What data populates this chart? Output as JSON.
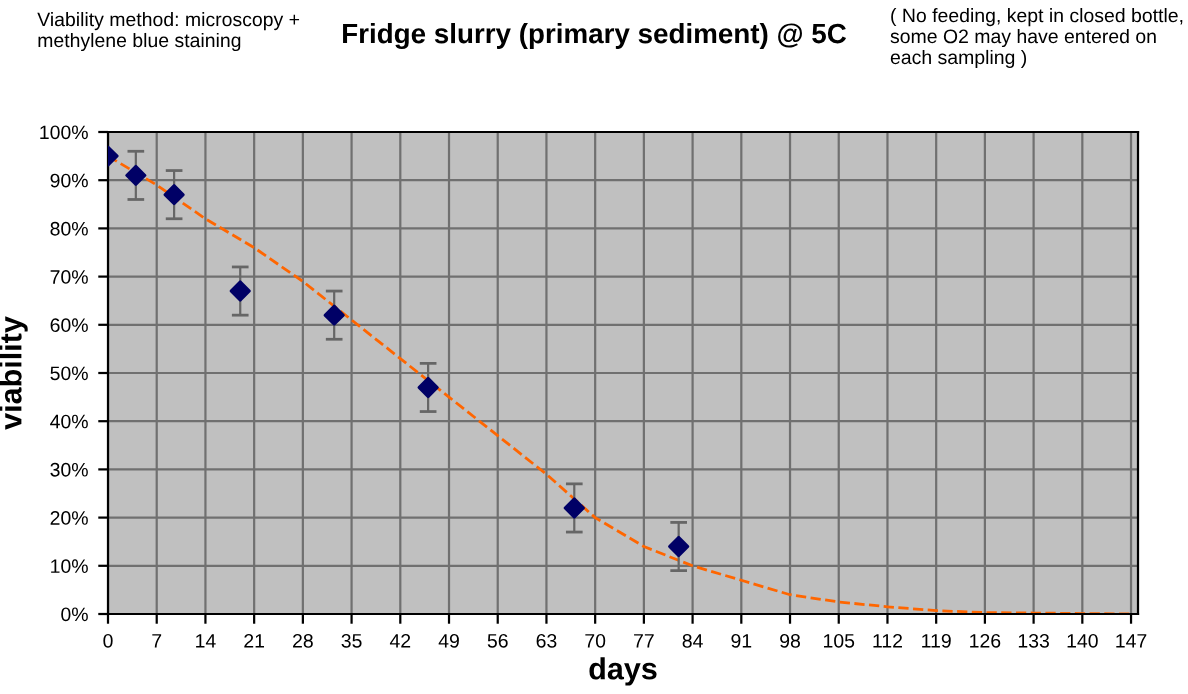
{
  "chart_data": {
    "type": "scatter",
    "title": "Fridge slurry (primary sediment) @ 5C",
    "xlabel": "days",
    "ylabel": "viability",
    "annotations": [
      "Viability method: microscopy + methylene blue staining",
      "( No feeding, kept in closed bottle, some O2 may have entered on each sampling )"
    ],
    "series": [
      {
        "color": "#000066",
        "marker": "diamond",
        "x": [
          0,
          4,
          9.5,
          19,
          32.5,
          46,
          67,
          82
        ],
        "values": [
          95,
          91,
          87,
          67,
          62,
          47,
          22,
          14
        ],
        "errors": [
          null,
          5,
          5,
          5,
          5,
          5,
          5,
          5
        ]
      },
      {
        "type": "line",
        "color": "#ff6600",
        "line_style": "dashed",
        "x": [
          0,
          7,
          14,
          21,
          28,
          35,
          42,
          49,
          56,
          63,
          70,
          77,
          84,
          91,
          98,
          105,
          112,
          119,
          126,
          133,
          140,
          147
        ],
        "values": [
          95,
          89,
          82,
          76,
          69,
          61,
          53,
          45,
          37,
          29,
          20,
          14,
          10,
          7,
          4,
          2.5,
          1.5,
          0.7,
          0.3,
          0.2,
          0.1,
          0
        ]
      }
    ],
    "xlim": [
      0,
      148
    ],
    "xticks": [
      0,
      7,
      14,
      21,
      28,
      35,
      42,
      49,
      56,
      63,
      70,
      77,
      84,
      91,
      98,
      105,
      112,
      119,
      126,
      133,
      140,
      147
    ],
    "ylim": [
      0,
      100
    ],
    "yticks": [
      {
        "value": 0,
        "label": "0%"
      },
      {
        "value": 10,
        "label": "10%"
      },
      {
        "value": 20,
        "label": "20%"
      },
      {
        "value": 30,
        "label": "30%"
      },
      {
        "value": 40,
        "label": "40%"
      },
      {
        "value": 50,
        "label": "50%"
      },
      {
        "value": 60,
        "label": "60%"
      },
      {
        "value": 70,
        "label": "70%"
      },
      {
        "value": 80,
        "label": "80%"
      },
      {
        "value": 90,
        "label": "90%"
      },
      {
        "value": 100,
        "label": "100%"
      }
    ],
    "grid": true,
    "legend": false
  }
}
